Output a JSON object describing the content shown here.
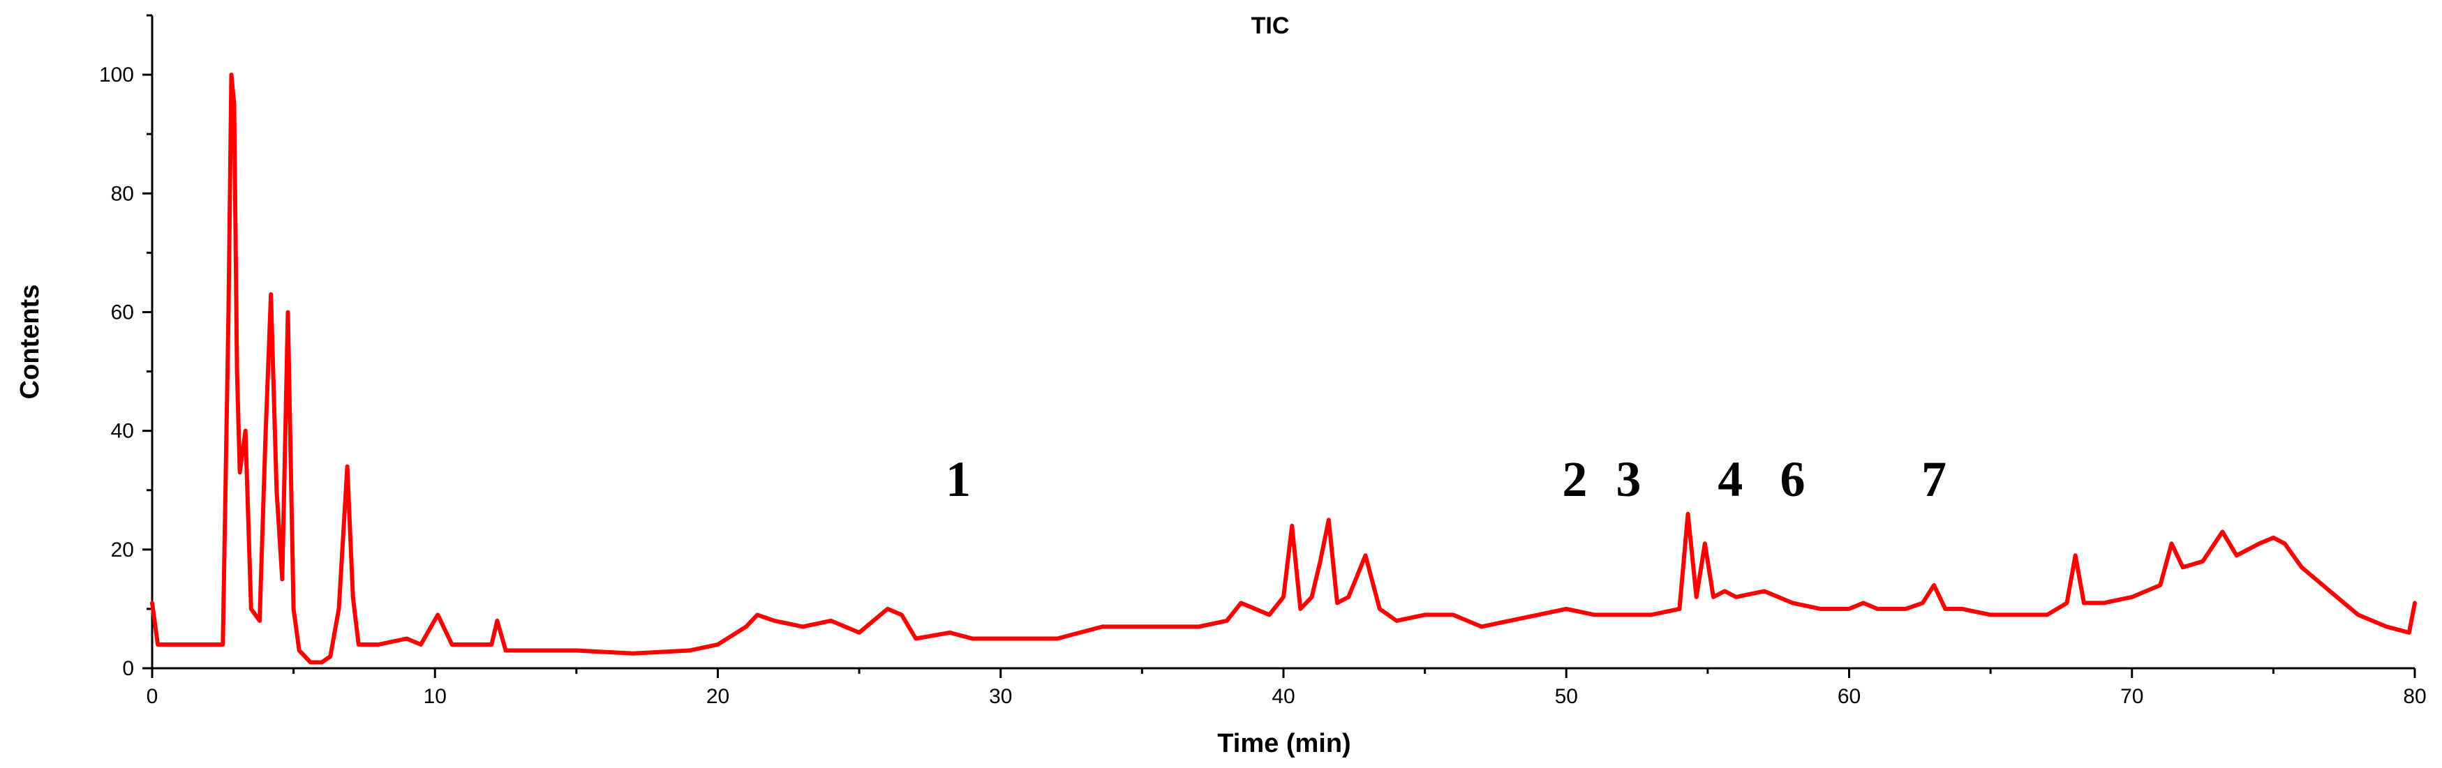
{
  "chart_data": {
    "type": "line",
    "title": "TIC",
    "xlabel": "Time (min)",
    "ylabel": "Contents",
    "xlim": [
      0,
      80
    ],
    "ylim": [
      0,
      110
    ],
    "xticks": [
      0,
      10,
      20,
      30,
      40,
      50,
      60,
      70,
      80
    ],
    "xtick_labels": [
      "0",
      "10",
      "20",
      "30",
      "40",
      "50",
      "60",
      "70",
      "80"
    ],
    "yticks": [
      0,
      20,
      40,
      60,
      80,
      100
    ],
    "ytick_labels": [
      "0",
      "20",
      "40",
      "60",
      "80",
      "100"
    ],
    "grid": false,
    "series": [
      {
        "name": "TIC",
        "color": "#ff0000",
        "x": [
          0,
          0.2,
          1,
          2,
          2.5,
          2.7,
          2.8,
          2.9,
          3.0,
          3.1,
          3.3,
          3.5,
          3.8,
          4.0,
          4.2,
          4.4,
          4.6,
          4.8,
          5.0,
          5.2,
          5.6,
          6.0,
          6.3,
          6.6,
          6.9,
          7.1,
          7.3,
          7.6,
          8,
          9,
          9.5,
          10.1,
          10.6,
          11,
          12,
          12.2,
          12.5,
          13,
          15,
          17,
          19,
          20,
          21,
          21.4,
          22,
          23,
          24,
          25,
          26,
          26.5,
          27,
          28.2,
          29,
          30,
          32,
          33.6,
          35,
          37,
          38,
          38.5,
          39.5,
          40.0,
          40.3,
          40.6,
          41.0,
          41.3,
          41.6,
          41.9,
          42.3,
          42.9,
          43.4,
          44,
          45,
          46,
          47,
          48,
          49,
          50,
          51,
          52,
          53,
          54.0,
          54.3,
          54.6,
          54.9,
          55.2,
          55.6,
          56,
          57,
          58,
          59,
          60,
          60.5,
          61,
          62,
          62.6,
          63.0,
          63.4,
          64,
          65,
          66,
          67,
          67.7,
          68.0,
          68.3,
          69,
          70,
          71,
          71.4,
          71.8,
          72.5,
          73.2,
          73.7,
          74.5,
          75.0,
          75.4,
          76,
          77,
          78,
          79,
          79.8,
          80
        ],
        "values": [
          11,
          4,
          4,
          4,
          4,
          60,
          100,
          95,
          50,
          33,
          40,
          10,
          8,
          38,
          63,
          30,
          15,
          60,
          10,
          3,
          1,
          1,
          2,
          10,
          34,
          12,
          4,
          4,
          4,
          5,
          4,
          9,
          4,
          4,
          4,
          8,
          3,
          3,
          3,
          2.5,
          3,
          4,
          7,
          9,
          8,
          7,
          8,
          6,
          10,
          9,
          5,
          6,
          5,
          5,
          5,
          7,
          7,
          7,
          8,
          11,
          9,
          12,
          24,
          10,
          12,
          18,
          25,
          11,
          12,
          19,
          10,
          8,
          9,
          9,
          7,
          8,
          9,
          10,
          9,
          9,
          9,
          10,
          26,
          12,
          21,
          12,
          13,
          12,
          13,
          11,
          10,
          10,
          11,
          10,
          10,
          11,
          14,
          10,
          10,
          9,
          9,
          9,
          11,
          19,
          11,
          11,
          12,
          14,
          21,
          17,
          18,
          23,
          19,
          21,
          22,
          21,
          17,
          13,
          9,
          7,
          6,
          11
        ]
      }
    ],
    "annotations": [
      {
        "text": "1",
        "x": 28.5,
        "y": 29
      },
      {
        "text": "2",
        "x": 50.3,
        "y": 29
      },
      {
        "text": "3",
        "x": 52.2,
        "y": 29
      },
      {
        "text": "4",
        "x": 55.8,
        "y": 29
      },
      {
        "text": "6",
        "x": 58.0,
        "y": 29
      },
      {
        "text": "7",
        "x": 63.0,
        "y": 29
      }
    ]
  }
}
